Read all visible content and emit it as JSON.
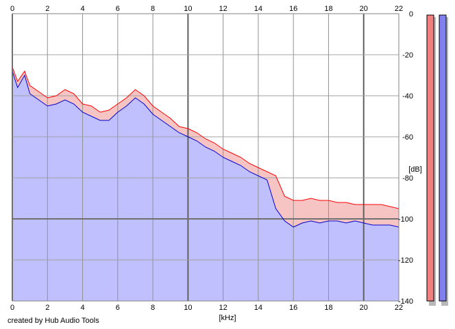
{
  "chart_data": {
    "type": "area",
    "xlabel": "[kHz]",
    "ylabel": "[dB]",
    "xlim": [
      0,
      22
    ],
    "ylim": [
      -140,
      0
    ],
    "x_ticks": [
      0,
      2,
      4,
      6,
      8,
      10,
      12,
      14,
      16,
      18,
      20,
      22
    ],
    "y_ticks": [
      0,
      -20,
      -40,
      -60,
      -80,
      -100,
      -120,
      -140
    ],
    "x_tick_labels": [
      "0",
      "2",
      "4",
      "6",
      "8",
      "10",
      "12",
      "14",
      "16",
      "18",
      "20",
      "22"
    ],
    "y_tick_labels": [
      "0",
      "-20",
      "-40",
      "-60",
      "-80",
      "-100",
      "-120",
      "-140"
    ],
    "grid": true,
    "series": [
      {
        "color": "#ff0000",
        "fill": "#f7c4c4",
        "x": [
          0,
          0.3,
          0.7,
          1,
          1.5,
          2,
          2.5,
          3,
          3.5,
          4,
          4.5,
          5,
          5.5,
          6,
          6.5,
          7,
          7.5,
          8,
          8.5,
          9,
          9.5,
          10,
          10.5,
          11,
          11.5,
          12,
          12.5,
          13,
          13.5,
          14,
          14.5,
          15,
          15.5,
          16,
          16.5,
          17,
          17.5,
          18,
          18.5,
          19,
          19.5,
          20,
          20.5,
          21,
          21.5,
          22
        ],
        "values": [
          -26,
          -33,
          -28,
          -35,
          -38,
          -41,
          -40,
          -37,
          -39,
          -44,
          -45,
          -48,
          -47,
          -44,
          -41,
          -37,
          -40,
          -45,
          -48,
          -51,
          -55,
          -56,
          -58,
          -61,
          -63,
          -66,
          -68,
          -70,
          -73,
          -75,
          -77,
          -79,
          -89,
          -91,
          -91,
          -90,
          -91,
          -91,
          -92,
          -92,
          -93,
          -93,
          -93,
          -93,
          -94,
          -95
        ]
      },
      {
        "color": "#0000cc",
        "fill": "#c0c0ff",
        "x": [
          0,
          0.3,
          0.7,
          1,
          1.5,
          2,
          2.5,
          3,
          3.5,
          4,
          4.5,
          5,
          5.5,
          6,
          6.5,
          7,
          7.5,
          8,
          8.5,
          9,
          9.5,
          10,
          10.5,
          11,
          11.5,
          12,
          12.5,
          13,
          13.5,
          14,
          14.5,
          15,
          15.5,
          16,
          16.5,
          17,
          17.5,
          18,
          18.5,
          19,
          19.5,
          20,
          20.5,
          21,
          21.5,
          22
        ],
        "values": [
          -28,
          -36,
          -30,
          -39,
          -42,
          -45,
          -44,
          -42,
          -44,
          -48,
          -50,
          -52,
          -52,
          -48,
          -45,
          -41,
          -44,
          -49,
          -52,
          -55,
          -58,
          -60,
          -62,
          -65,
          -67,
          -70,
          -72,
          -74,
          -77,
          -79,
          -81,
          -95,
          -101,
          -104,
          -102,
          -101,
          -102,
          -101,
          -101,
          -102,
          -101,
          -102,
          -103,
          -103,
          -103,
          -104
        ]
      }
    ]
  },
  "level_meters": [
    {
      "color": "#f08080"
    },
    {
      "color": "#8080f0"
    }
  ],
  "credit": "created by Hub Audio Tools"
}
